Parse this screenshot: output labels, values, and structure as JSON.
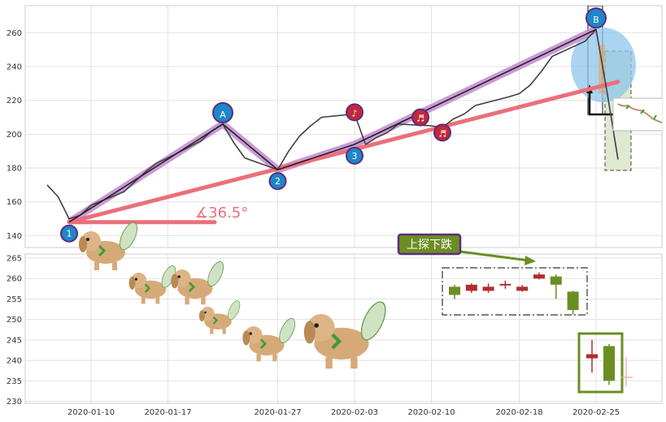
{
  "chart_data": [
    {
      "type": "line",
      "panel": "price",
      "ylim": [
        133,
        276
      ],
      "yticks": [
        140,
        160,
        180,
        200,
        220,
        240,
        260
      ],
      "x": [
        "2020-01-06",
        "2020-01-07",
        "2020-01-08",
        "2020-01-09",
        "2020-01-10",
        "2020-01-13",
        "2020-01-14",
        "2020-01-15",
        "2020-01-16",
        "2020-01-17",
        "2020-01-20",
        "2020-01-21",
        "2020-01-22",
        "2020-01-23",
        "2020-01-24",
        "2020-01-27",
        "2020-01-28",
        "2020-01-29",
        "2020-01-30",
        "2020-01-31",
        "2020-02-03",
        "2020-02-04",
        "2020-02-05",
        "2020-02-06",
        "2020-02-07",
        "2020-02-10",
        "2020-02-11",
        "2020-02-12",
        "2020-02-13",
        "2020-02-14",
        "2020-02-17",
        "2020-02-18",
        "2020-02-19",
        "2020-02-20",
        "2020-02-21",
        "2020-02-24",
        "2020-02-25",
        "2020-02-26",
        "2020-02-27"
      ],
      "close": [
        170,
        163,
        150,
        152,
        158,
        166,
        172,
        178,
        183,
        186,
        196,
        202,
        206,
        195,
        186,
        179,
        190,
        199,
        205,
        210,
        212,
        194,
        198,
        201,
        206,
        205,
        204,
        209,
        212,
        217,
        222,
        224,
        229,
        237,
        246,
        255,
        262,
        225,
        185
      ],
      "pattern_points": [
        {
          "label": "1",
          "date": "2020-01-08",
          "value": 148
        },
        {
          "label": "A",
          "date": "2020-01-22",
          "value": 206
        },
        {
          "label": "2",
          "date": "2020-01-27",
          "value": 179
        },
        {
          "label": "3",
          "date": "2020-02-03",
          "value": 194
        },
        {
          "label": "B",
          "date": "2020-02-25",
          "value": 262
        }
      ],
      "note_markers": [
        {
          "symbol": "♪",
          "date": "2020-02-03",
          "value": 212
        },
        {
          "symbol": "♬",
          "date": "2020-02-09",
          "value": 209
        },
        {
          "symbol": "♬",
          "date": "2020-02-11",
          "value": 200
        }
      ],
      "trend_line": {
        "from": {
          "date": "2020-01-08",
          "value": 148
        },
        "to": {
          "date": "2020-02-27",
          "value": 231
        }
      },
      "angle_label": "∡36.5°"
    },
    {
      "type": "candlestick",
      "panel": "lower",
      "ylim": [
        229.5,
        266
      ],
      "yticks": [
        230,
        235,
        240,
        245,
        250,
        255,
        260,
        265
      ],
      "xticks": [
        "2020-01-10",
        "2020-01-17",
        "2020-01-27",
        "2020-02-03",
        "2020-02-10",
        "2020-02-18",
        "2020-02-25"
      ],
      "annotation": "上探下跌",
      "pattern_candles": [
        {
          "open": 256,
          "close": 258,
          "high": 258.5,
          "low": 255,
          "color": "green"
        },
        {
          "open": 257,
          "close": 258.5,
          "high": 258.8,
          "low": 256.5,
          "color": "red"
        },
        {
          "open": 257,
          "close": 258,
          "high": 258.8,
          "low": 256.5,
          "color": "red"
        },
        {
          "open": 258.3,
          "close": 258.7,
          "high": 259.5,
          "low": 257.5,
          "color": "red"
        },
        {
          "open": 257,
          "close": 258,
          "high": 258.4,
          "low": 256.8,
          "color": "red"
        },
        {
          "open": 260,
          "close": 261,
          "high": 261.5,
          "low": 259.8,
          "color": "red"
        },
        {
          "open": 258.5,
          "close": 260.5,
          "high": 261,
          "low": 255,
          "color": "green"
        },
        {
          "open": 256.8,
          "close": 252.3,
          "high": 257,
          "low": 251.2,
          "color": "green"
        }
      ],
      "example_candles": [
        {
          "open": 240.5,
          "close": 241.5,
          "high": 245,
          "low": 237,
          "color": "red"
        },
        {
          "open": 243.5,
          "close": 235,
          "high": 244,
          "low": 234,
          "color": "green"
        }
      ]
    }
  ],
  "colors": {
    "price_line": "#404040",
    "pattern_zigzag": "#c58fd3",
    "trend_line": "#eb6f7b",
    "marker_blue": "#1c87c9",
    "marker_red": "#c3283a",
    "candle_red": "#b22d2d",
    "candle_green": "#6b8e23",
    "annotation_bg": "#6b8e23",
    "annotation_border": "#5e2b7e"
  }
}
